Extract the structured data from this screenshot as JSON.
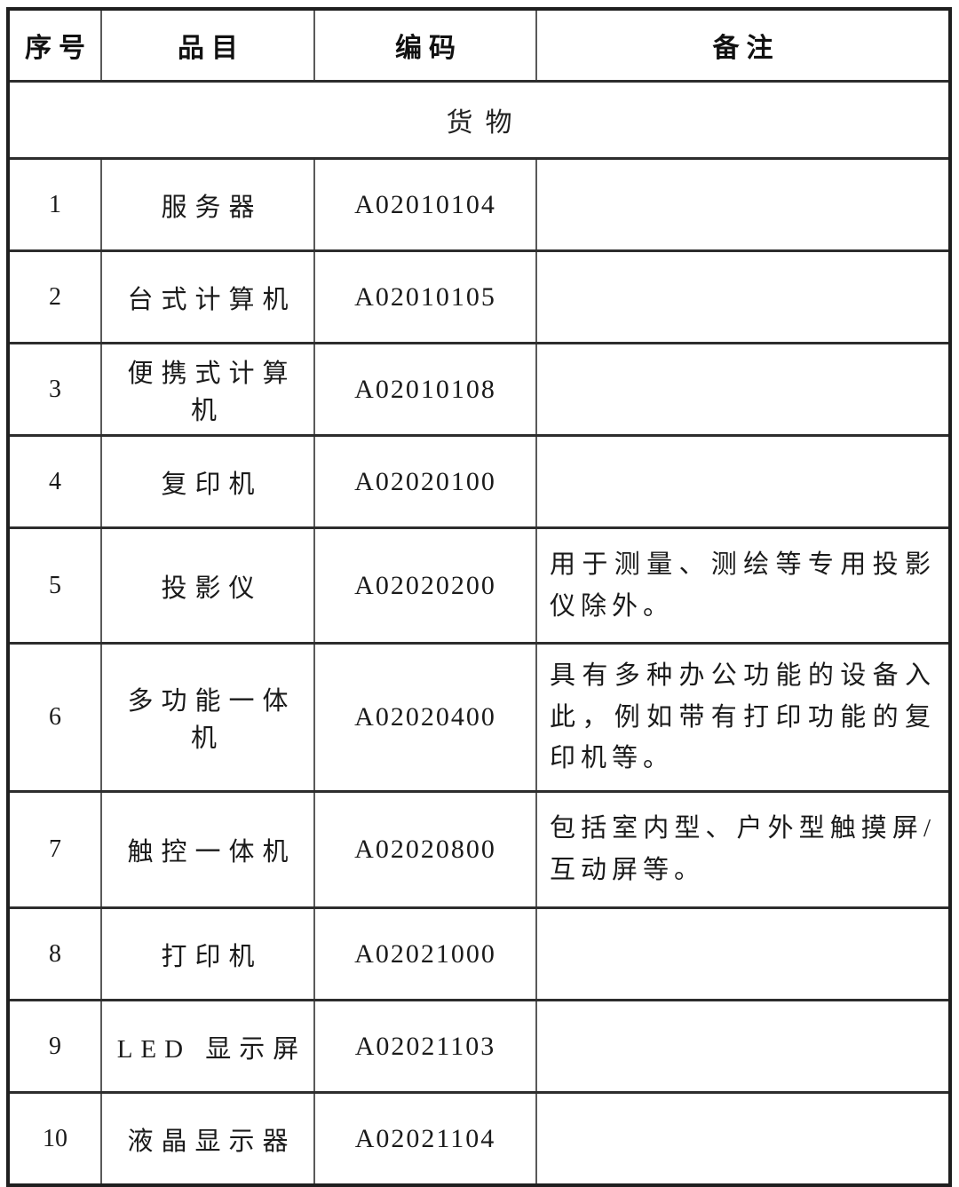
{
  "document": {
    "kind": "procurement-catalog-table",
    "colors": {
      "outer_border": "#1f1f1f",
      "row_rule": "#2d2d2d",
      "column_rule": "#5a5a5a",
      "text": "#1a1a1a",
      "background": "#ffffff"
    }
  },
  "table": {
    "columns": [
      "序号",
      "品目",
      "编码",
      "备注"
    ],
    "section_label": "货物",
    "rows": [
      {
        "no": "1",
        "item": "服务器",
        "code": "A02010104",
        "remark": ""
      },
      {
        "no": "2",
        "item": "台式计算机",
        "code": "A02010105",
        "remark": ""
      },
      {
        "no": "3",
        "item": "便携式计算机",
        "code": "A02010108",
        "remark": ""
      },
      {
        "no": "4",
        "item": "复印机",
        "code": "A02020100",
        "remark": ""
      },
      {
        "no": "5",
        "item": "投影仪",
        "code": "A02020200",
        "remark": "用于测量、测绘等专用投影仪除外。"
      },
      {
        "no": "6",
        "item": "多功能一体机",
        "code": "A02020400",
        "remark": "具有多种办公功能的设备入此，例如带有打印功能的复印机等。"
      },
      {
        "no": "7",
        "item": "触控一体机",
        "code": "A02020800",
        "remark": "包括室内型、户外型触摸屏/互动屏等。"
      },
      {
        "no": "8",
        "item": "打印机",
        "code": "A02021000",
        "remark": ""
      },
      {
        "no": "9",
        "item": "LED 显示屏",
        "code": "A02021103",
        "remark": ""
      },
      {
        "no": "10",
        "item": "液晶显示器",
        "code": "A02021104",
        "remark": ""
      }
    ]
  }
}
